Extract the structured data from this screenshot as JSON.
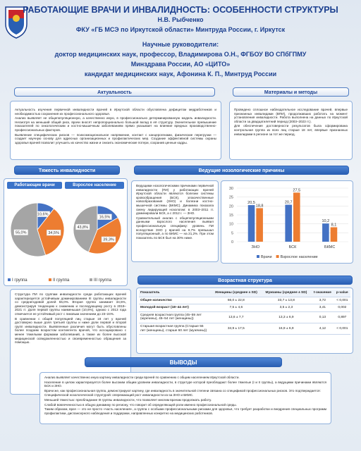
{
  "header": {
    "title": "РАБОТАЮЩИЕ ВРАЧИ И ИНВАЛИДНОСТЬ: ОСОБЕННОСТИ СТРУКТУРЫ",
    "author": "Н.В. Рыбченко",
    "organization": "ФКУ «ГБ МСЭ по Иркутской области» Минтруда России, г. Иркутск",
    "supervisors_label": "Научные руководители:",
    "supervisor_1_line_1": "доктор медицинских наук, профессор, Владимирова О.Н., ФГБОУ ВО СПбГПМУ",
    "supervisor_1_line_2": "Минздрава России, АО «ЦИТО»",
    "supervisor_2": "кандидат медицинских наук, Афонина К. П., Минтруд России"
  },
  "sections": {
    "relevance": {
      "title": "Актуальность",
      "text": [
        "Актуальность изучения первичной инвалидности врачей в Иркутской области обусловлена дефицитом медработников и необходимостью сохранения их профессионального здоровья.",
        "Анализ выявляет не общепопуляционную, а качественно иную, в профессионально детерминированную модель инвалидности. Несмотря на меньший общий риск, врачи вносят непропорционально большой вклад в её структуру. Значительное превышение показателей по онкологическим и костно-мышечным заболеваниям прямо указывает на влияние вредных производственно-профессиональных факторов.",
        "Выявление специфических рисков — психоэмоциональное напряжение, контакт с канцерогенами, физические перегрузки — создает научную основу для адресных организационных и профилактических мер. Создание эффективной системы охраны здоровья врачей позволит улучшить их качество жизни и снизить экономические потери, сохранив ценные кадры."
      ]
    },
    "methods": {
      "title": "Материалы и методы",
      "text": [
        "Проведено сплошное наблюдательное исследование врачей, впервые признанных инвалидами (ВПИ), продолжавших работать на момент установления инвалидности. Работа выполнена на данных по Иркутской области за двадцатилетний период (2003–2023 гг.).",
        "Для обеспечения достоверности результатов была сформирована контрольная группа из всех лиц старше 18 лет, впервые признанных инвалидами в регионе за тот же период."
      ]
    },
    "severity": {
      "title": "Тяжесть инвалидности",
      "text": [
        "Структура ПИ по группам инвалидности среди работающих врачей характеризуется устойчивым доминированием III группы инвалидности со среднегодовой долей 55,0%. Вторая группа занимает 34,5%, демонстрируя тенденцию к снижению и последующему росту в 2019–2021 гг. Доля первой группы наименьшая (10,6%), однако с 2013 года отмечается ее устойчивый рост с пиковым значением до 23–24%.",
        "В сравнении с общей популяцией лиц старше 18 лет у врачей достоверно выше доля третьей группы и ниже доли первой и второй групп инвалидности. Выявленные различия могут быть обусловлены более поздним возрастом контингента врачей, что ассоциировано с менее тяжелыми формами заболеваний, а также их более высокой медицинской осведомленностью и своевременностью обращения за помощью."
      ]
    },
    "causes": {
      "title": "Ведущие нозологические причины",
      "text": [
        "Ведущими нозологическими причинами первичной инвалидности (ПИ) у работающих врачей Иркутской области являются болезни системы кровообращения (БСК), злокачественные новообразования (ЗНО) и болезни костно-мышечной системы (БКМС). Динамика показала смену лидирующей нозологии: в 2003–2011 гг. доминировали БСК, а с 2012 г. — ЗНО.",
        "Сравнительный анализ с общепопуляционными данными взрослого населения выявил профессиональную специфику: уровень ПИ вследствие ЗНО у врачей на 9,7% превышал популяционный, а по БКМС — на 21,2%. При этом показатель по БСК был на 30% ниже."
      ]
    },
    "age": {
      "title": "Возрастная структура"
    },
    "conclusions": {
      "title": "ВЫВОДЫ",
      "text": [
        "Анализ выявляет качественно иную картину инвалидности среди врачей по сравнению с общим населением Иркутской области.",
        "Население в целом характеризуется более высоким общим уровнем инвалидности, в структуре которой преобладают более тяжелые (I и II группы), а ведущими причинами являются БСК и ЗНО.",
        "Врачи же, как профессиональная группа, демонстрируют картину, где инвалидность в значительной степени связана со спецификой профессиональных рисков. Это подтверждается:",
        "Специфической нозологической структурой: опережающий рост инвалидности из-за ЗНО и БКМС.",
        "Меньшей тяжестью: преобладание III группы инвалидности, что позволяет многим врачам продолжать работу.",
        "Слабой вовлеченностью в общую динамику по региону, что говорит об определяющей роли именно профессиональной среды.",
        "Таким образом, врач — это не просто «часть населения», а группа с особыми профессиональными рисками для здоровья, что требует разработки и внедрения специальных программ профилактики, диспансерного наблюдения и поддержки, направленных конкретно на медицинских работников."
      ]
    }
  },
  "table": {
    "rows": [
      [
        "Показатель",
        "Женщины (среднее ± SD)",
        "Мужчины (среднее ± SD)",
        "t-значение",
        "p-value"
      ],
      [
        "Общее количество",
        "66,0 ± 22,8",
        "33,7 ± 13,8",
        "3,72",
        "< 0,001"
      ],
      [
        "Молодой возраст (18–44 лет)",
        "7,5 ± 4,6",
        "3,5 ± 2,3",
        "3,41",
        "0,002"
      ],
      [
        "Средняя возрастная группа (45–59 лет (мужчины), 45–54 лет (женщины))",
        "13,6 ± 7,7",
        "13,3 ± 6,9",
        "0,13",
        "0,897"
      ],
      [
        "Старшая возрастная группа (Старше 55 лет (женщины), старше 60 лет (мужчины))",
        "34,9 ± 17,5",
        "16,9 ± 6,9",
        "4,12",
        "< 0,001"
      ]
    ]
  },
  "chart_data": [
    {
      "type": "pie",
      "title": "Работающие врачи",
      "categories": [
        "I группа",
        "II группа",
        "III группа"
      ],
      "colors": [
        "#4472c4",
        "#ed7d31",
        "#a5a5a5"
      ],
      "values": [
        10.6,
        34.5,
        55.0
      ],
      "value_labels": [
        "10,6%",
        "34,5%",
        "55,0%"
      ]
    },
    {
      "type": "pie",
      "title": "Взрослое население",
      "colors": [
        "#4472c4",
        "#ed7d31",
        "#a5a5a5"
      ],
      "values": [
        16.5,
        39.3,
        43.8
      ],
      "value_labels": [
        "16,5%",
        "39,3%",
        "43,8%"
      ]
    },
    {
      "type": "bar",
      "categories": [
        "ЗНО",
        "БСК",
        "БКМС"
      ],
      "series": [
        {
          "name": "Врачи",
          "color": "#4472c4",
          "values": [
            20.5,
            20.7,
            10.2
          ],
          "value_labels": [
            "20,5",
            "20,7",
            "10,2"
          ]
        },
        {
          "name": "Взрослое население",
          "color": "#ed7d31",
          "values": [
            18.8,
            27.5,
            8.1
          ],
          "value_labels": [
            "18,8",
            "27,5",
            "8,1"
          ]
        }
      ],
      "ylim": [
        0,
        30
      ],
      "yticks": [
        0,
        5,
        10,
        15,
        20,
        25,
        30
      ],
      "grid": true,
      "legend": "bottom"
    }
  ]
}
